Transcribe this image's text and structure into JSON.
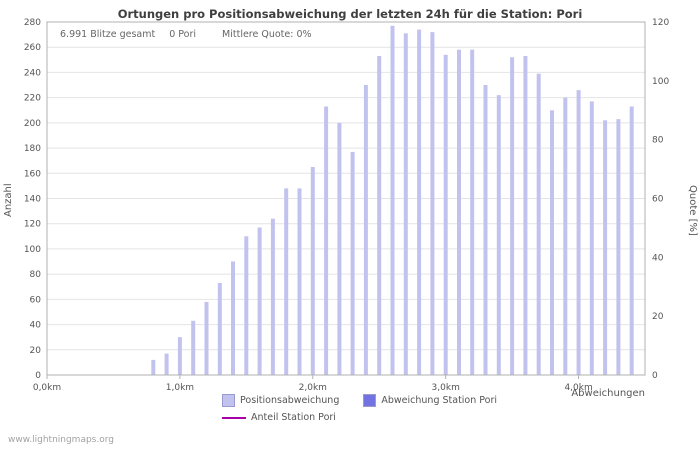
{
  "page": {
    "watermark": "www.lightningmaps.org"
  },
  "chart_data": {
    "type": "bar",
    "title": "Ortungen pro Positionsabweichung der letzten 24h für die Station: Pori",
    "annotations": [
      "6.991 Blitze gesamt",
      "0 Pori",
      "Mittlere Quote: 0%"
    ],
    "xlabel": "Abweichungen",
    "ylabel_left": "Anzahl",
    "ylabel_right": "Quote [%]",
    "ylim_left": [
      0,
      280
    ],
    "ylim_right": [
      0,
      120
    ],
    "xlim_km": [
      0,
      4.5
    ],
    "y_ticks_left": [
      0,
      20,
      40,
      60,
      80,
      100,
      120,
      140,
      160,
      180,
      200,
      220,
      240,
      260,
      280
    ],
    "y_ticks_right": [
      0,
      20,
      40,
      60,
      80,
      100,
      120
    ],
    "x_ticks": [
      {
        "km": 0,
        "label": "0,0km"
      },
      {
        "km": 1,
        "label": "1,0km"
      },
      {
        "km": 2,
        "label": "2,0km"
      },
      {
        "km": 3,
        "label": "3,0km"
      },
      {
        "km": 4,
        "label": "4,0km"
      }
    ],
    "grid": "horizontal",
    "legend_position": "bottom",
    "series": [
      {
        "name": "Positionsabweichung",
        "type": "bar",
        "color": "#c2c2ef",
        "x_km": [
          0.8,
          0.9,
          1.0,
          1.1,
          1.2,
          1.3,
          1.4,
          1.5,
          1.6,
          1.7,
          1.8,
          1.9,
          2.0,
          2.1,
          2.2,
          2.3,
          2.4,
          2.5,
          2.6,
          2.7,
          2.8,
          2.9,
          3.0,
          3.1,
          3.2,
          3.3,
          3.4,
          3.5,
          3.6,
          3.7,
          3.8,
          3.9,
          4.0,
          4.1,
          4.2,
          4.3,
          4.4
        ],
        "values": [
          12,
          17,
          30,
          43,
          58,
          73,
          90,
          110,
          117,
          124,
          148,
          148,
          165,
          213,
          200,
          177,
          230,
          253,
          277,
          271,
          274,
          272,
          254,
          258,
          258,
          230,
          222,
          252,
          253,
          239,
          210,
          220,
          226,
          217,
          202,
          203,
          213
        ]
      },
      {
        "name": "Abweichung Station Pori",
        "type": "bar",
        "color": "#7272e0",
        "x_km": [],
        "values": []
      },
      {
        "name": "Anteil Station Pori",
        "type": "line",
        "color": "#aa00aa",
        "x_km": [],
        "values": []
      }
    ]
  }
}
